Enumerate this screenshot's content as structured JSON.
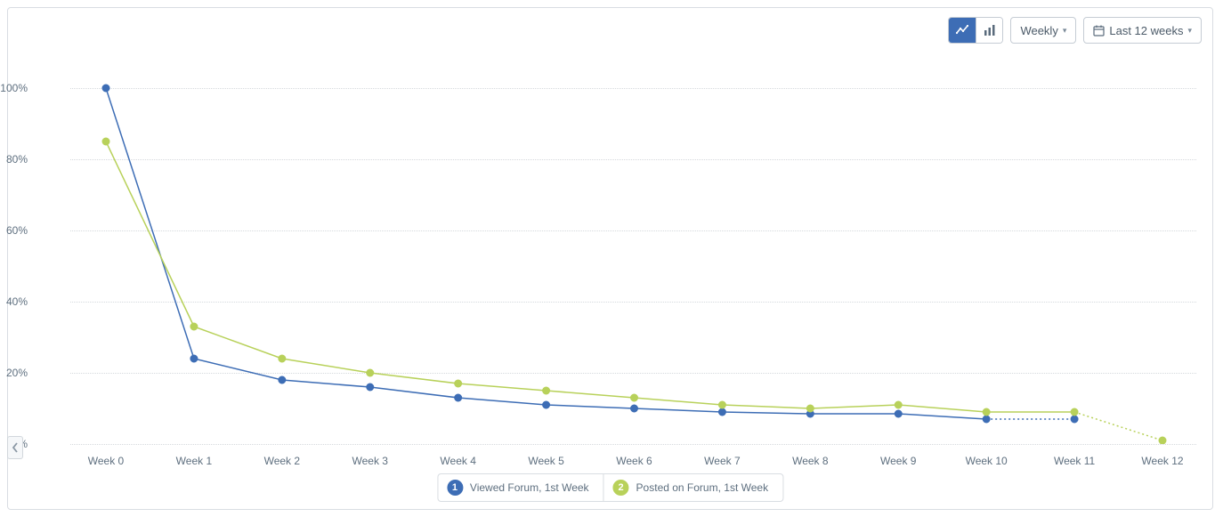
{
  "toolbar": {
    "chart_type_line_active": true,
    "period_label": "Weekly",
    "range_label": "Last 12 weeks"
  },
  "chart": {
    "type": "line",
    "background_color": "#ffffff",
    "grid_color": "#d5d9dd",
    "grid_style": "dotted",
    "y_axis": {
      "ticks": [
        0,
        20,
        40,
        60,
        80,
        100
      ],
      "suffix": "%",
      "label_color": "#5e6f7f",
      "label_fontsize": 12,
      "ylim": [
        0,
        105
      ]
    },
    "x_axis": {
      "categories": [
        "Week 0",
        "Week 1",
        "Week 2",
        "Week 3",
        "Week 4",
        "Week 5",
        "Week 6",
        "Week 7",
        "Week 8",
        "Week 9",
        "Week 10",
        "Week 11",
        "Week 12"
      ],
      "label_color": "#5e6f7f",
      "label_fontsize": 12
    },
    "series": [
      {
        "id": 1,
        "name": "Viewed Forum, 1st Week",
        "color": "#3d6db5",
        "marker_fill": "#3d6db5",
        "marker_stroke": "#3d6db5",
        "marker_radius": 4,
        "line_width": 1.5,
        "values": [
          100,
          24,
          18,
          16,
          13,
          11,
          10,
          9,
          8.5,
          8.5,
          7,
          7,
          null
        ],
        "dashed_from_index": 10
      },
      {
        "id": 2,
        "name": "Posted on Forum, 1st Week",
        "color": "#b8d15a",
        "marker_fill": "#b8d15a",
        "marker_stroke": "#b8d15a",
        "marker_radius": 4,
        "line_width": 1.5,
        "values": [
          85,
          33,
          24,
          20,
          17,
          15,
          13,
          11,
          10,
          11,
          9,
          9,
          1
        ],
        "dashed_from_index": 11
      }
    ]
  },
  "legend": {
    "items": [
      {
        "badge": "1",
        "label": "Viewed Forum, 1st Week",
        "color": "#3d6db5"
      },
      {
        "badge": "2",
        "label": "Posted on Forum, 1st Week",
        "color": "#b8d15a"
      }
    ]
  }
}
